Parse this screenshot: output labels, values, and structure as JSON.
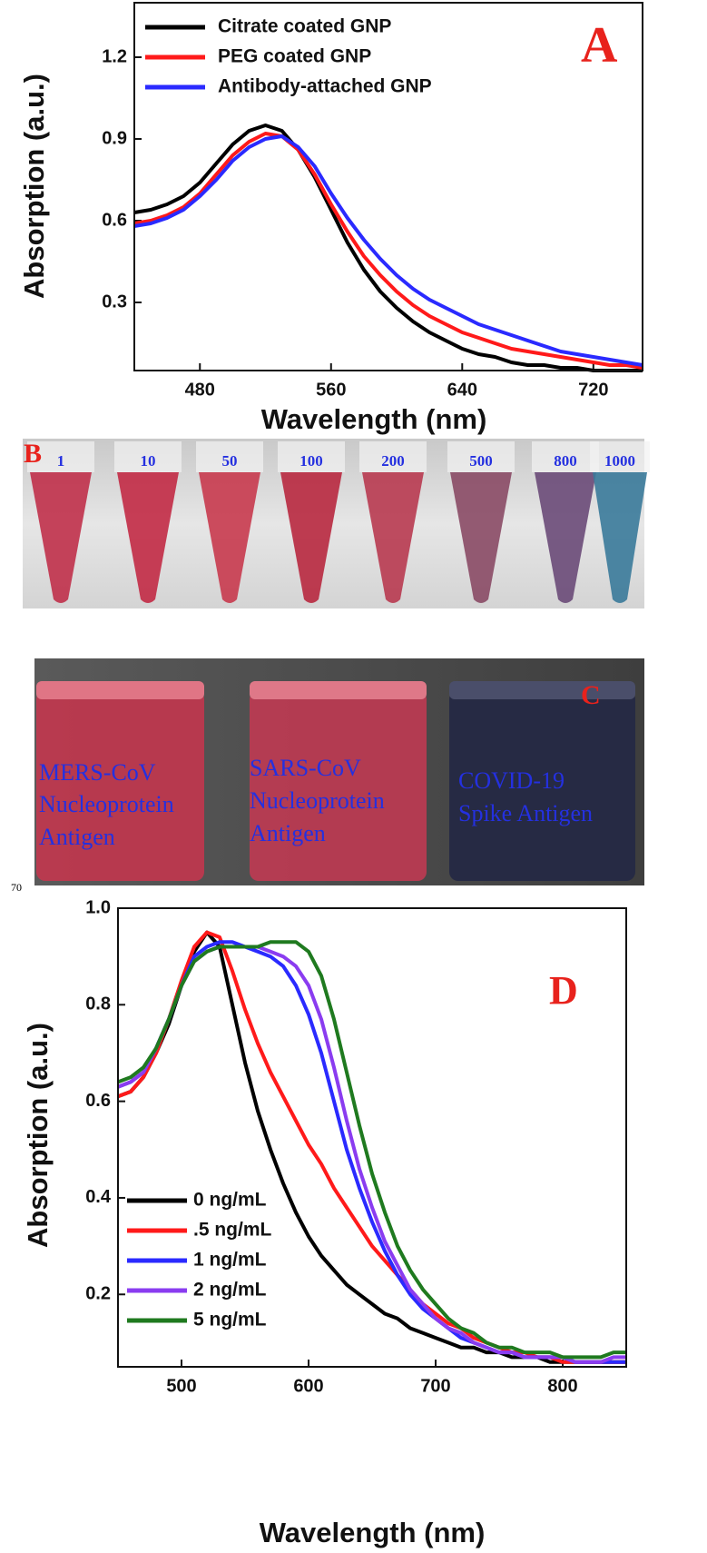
{
  "chart_data": [
    {
      "type": "line",
      "annotation": "A",
      "x_label": "Wavelength (nm)",
      "y_label": "Absorption (a.u.)",
      "x": [
        440,
        450,
        460,
        470,
        480,
        490,
        500,
        510,
        520,
        530,
        540,
        550,
        560,
        570,
        580,
        590,
        600,
        610,
        620,
        630,
        640,
        650,
        660,
        670,
        680,
        690,
        700,
        710,
        720,
        730,
        740,
        750
      ],
      "series": [
        {
          "name": "Citrate coated GNP",
          "color": "#000000",
          "values": [
            0.63,
            0.64,
            0.66,
            0.69,
            0.74,
            0.81,
            0.88,
            0.93,
            0.95,
            0.93,
            0.86,
            0.76,
            0.64,
            0.52,
            0.42,
            0.34,
            0.28,
            0.23,
            0.19,
            0.16,
            0.13,
            0.11,
            0.1,
            0.08,
            0.07,
            0.07,
            0.06,
            0.06,
            0.05,
            0.05,
            0.05,
            0.05
          ]
        },
        {
          "name": "PEG coated GNP",
          "color": "#ff1a1a",
          "values": [
            0.59,
            0.6,
            0.62,
            0.65,
            0.7,
            0.77,
            0.84,
            0.89,
            0.92,
            0.91,
            0.86,
            0.77,
            0.66,
            0.56,
            0.47,
            0.4,
            0.34,
            0.29,
            0.25,
            0.22,
            0.19,
            0.17,
            0.15,
            0.13,
            0.12,
            0.11,
            0.1,
            0.09,
            0.08,
            0.07,
            0.07,
            0.06
          ]
        },
        {
          "name": "Antibody-attached GNP",
          "color": "#2a2aff",
          "values": [
            0.58,
            0.59,
            0.61,
            0.64,
            0.69,
            0.75,
            0.82,
            0.87,
            0.9,
            0.91,
            0.87,
            0.8,
            0.7,
            0.61,
            0.53,
            0.46,
            0.4,
            0.35,
            0.31,
            0.28,
            0.25,
            0.22,
            0.2,
            0.18,
            0.16,
            0.14,
            0.12,
            0.11,
            0.1,
            0.09,
            0.08,
            0.07
          ]
        }
      ],
      "xlim": [
        440,
        750
      ],
      "xticks": [
        480,
        560,
        640,
        720
      ],
      "ylim": [
        0.05,
        1.4
      ],
      "yticks": [
        0.3,
        0.6,
        0.9,
        1.2
      ],
      "legend": "upper left"
    },
    {
      "type": "line",
      "annotation": "D",
      "x_label": "Wavelength (nm)",
      "y_label": "Absorption (a.u.)",
      "x": [
        450,
        460,
        470,
        480,
        490,
        500,
        510,
        520,
        530,
        540,
        550,
        560,
        570,
        580,
        590,
        600,
        610,
        620,
        630,
        640,
        650,
        660,
        670,
        680,
        690,
        700,
        710,
        720,
        730,
        740,
        750,
        760,
        770,
        780,
        790,
        800,
        810,
        820,
        830,
        840,
        850
      ],
      "series": [
        {
          "name": "0 ng/mL",
          "color": "#000000",
          "values": [
            0.61,
            0.62,
            0.65,
            0.7,
            0.76,
            0.84,
            0.91,
            0.95,
            0.92,
            0.8,
            0.68,
            0.58,
            0.5,
            0.43,
            0.37,
            0.32,
            0.28,
            0.25,
            0.22,
            0.2,
            0.18,
            0.16,
            0.15,
            0.13,
            0.12,
            0.11,
            0.1,
            0.09,
            0.09,
            0.08,
            0.08,
            0.07,
            0.07,
            0.07,
            0.06,
            0.06,
            0.06,
            0.06,
            0.06,
            0.06,
            0.06
          ]
        },
        {
          "name": ".5 ng/mL",
          "color": "#ff1a1a",
          "values": [
            0.61,
            0.62,
            0.65,
            0.7,
            0.77,
            0.85,
            0.92,
            0.95,
            0.94,
            0.87,
            0.79,
            0.72,
            0.66,
            0.61,
            0.56,
            0.51,
            0.47,
            0.42,
            0.38,
            0.34,
            0.3,
            0.27,
            0.24,
            0.21,
            0.18,
            0.16,
            0.14,
            0.13,
            0.11,
            0.1,
            0.09,
            0.08,
            0.08,
            0.07,
            0.07,
            0.06,
            0.06,
            0.06,
            0.06,
            0.06,
            0.06
          ]
        },
        {
          "name": "1 ng/mL",
          "color": "#2a2aff",
          "values": [
            0.63,
            0.64,
            0.66,
            0.71,
            0.77,
            0.84,
            0.9,
            0.92,
            0.93,
            0.93,
            0.92,
            0.91,
            0.9,
            0.88,
            0.84,
            0.78,
            0.7,
            0.6,
            0.5,
            0.42,
            0.35,
            0.29,
            0.24,
            0.2,
            0.17,
            0.15,
            0.13,
            0.11,
            0.1,
            0.09,
            0.08,
            0.08,
            0.07,
            0.07,
            0.07,
            0.07,
            0.06,
            0.06,
            0.06,
            0.06,
            0.06
          ]
        },
        {
          "name": "2 ng/mL",
          "color": "#8a3cf0",
          "values": [
            0.63,
            0.64,
            0.66,
            0.71,
            0.77,
            0.84,
            0.89,
            0.91,
            0.92,
            0.92,
            0.92,
            0.92,
            0.91,
            0.9,
            0.88,
            0.84,
            0.77,
            0.67,
            0.56,
            0.46,
            0.38,
            0.31,
            0.26,
            0.21,
            0.18,
            0.15,
            0.13,
            0.12,
            0.1,
            0.09,
            0.08,
            0.08,
            0.07,
            0.07,
            0.07,
            0.07,
            0.06,
            0.06,
            0.06,
            0.07,
            0.07
          ]
        },
        {
          "name": " 5 ng/mL",
          "color": "#1f7a1f",
          "values": [
            0.64,
            0.65,
            0.67,
            0.71,
            0.77,
            0.84,
            0.89,
            0.91,
            0.92,
            0.92,
            0.92,
            0.92,
            0.93,
            0.93,
            0.93,
            0.91,
            0.86,
            0.77,
            0.66,
            0.55,
            0.45,
            0.37,
            0.3,
            0.25,
            0.21,
            0.18,
            0.15,
            0.13,
            0.12,
            0.1,
            0.09,
            0.09,
            0.08,
            0.08,
            0.08,
            0.07,
            0.07,
            0.07,
            0.07,
            0.08,
            0.08
          ]
        }
      ],
      "xlim": [
        450,
        850
      ],
      "xticks": [
        500,
        600,
        700,
        800
      ],
      "ylim": [
        0.05,
        1.0
      ],
      "yticks": [
        0.2,
        0.4,
        0.6,
        0.8,
        {
          "value": 1.0,
          "label": "1.0"
        }
      ],
      "legend": "lower left"
    }
  ],
  "panels": {
    "B": {
      "label": "B",
      "tube_labels": [
        "1",
        "10",
        "50",
        "100",
        "200",
        "500",
        "800",
        "1000"
      ]
    },
    "C": {
      "label": "C",
      "captions": [
        [
          "MERS-CoV",
          "Nucleoprotein",
          "Antigen"
        ],
        [
          "SARS-CoV",
          "Nucleoprotein",
          "Antigen"
        ],
        [
          "COVID-19",
          "Spike Antigen"
        ]
      ]
    },
    "margin_note": "70"
  }
}
